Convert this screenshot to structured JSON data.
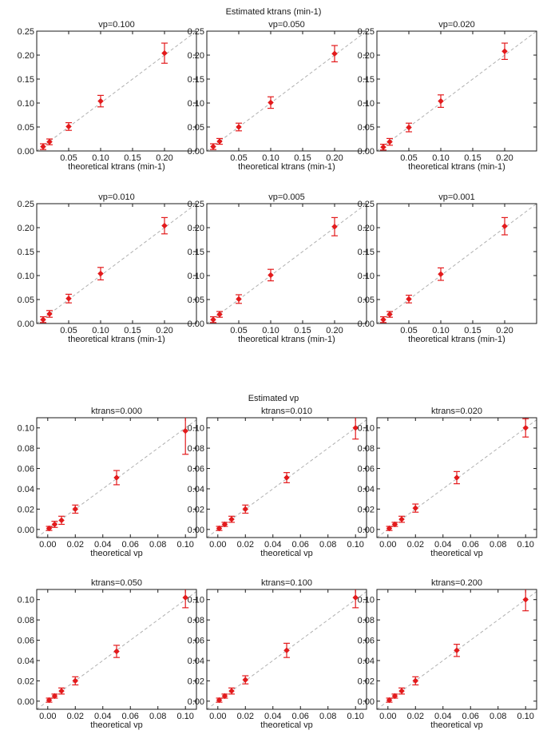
{
  "page": {
    "kt_group_title": "Estimated ktrans (min-1)",
    "vp_group_title": "Estimated vp"
  },
  "colors": {
    "marker": "#e31a1c",
    "identity_line": "#b0b0b0",
    "axis": "#1a1a1a"
  },
  "chart_data": [
    {
      "type": "scatter",
      "title": "vp=0.100",
      "xlabel": "theoretical ktrans (min-1)",
      "ylabel": "",
      "xlim": [
        0,
        0.25
      ],
      "ylim": [
        0,
        0.25
      ],
      "xticks": [
        0.05,
        0.1,
        0.15,
        0.2
      ],
      "xtick_labels": [
        "0.05",
        "0.10",
        "0.15",
        "0.20"
      ],
      "yticks": [
        0,
        0.05,
        0.1,
        0.15,
        0.2,
        0.25
      ],
      "ytick_labels": [
        "0.00",
        "0.05",
        "0.10",
        "0.15",
        "0.20",
        "0.25"
      ],
      "identity_line": true,
      "x": [
        0.01,
        0.02,
        0.05,
        0.1,
        0.2
      ],
      "y": [
        0.009,
        0.019,
        0.051,
        0.104,
        0.204
      ],
      "err": [
        0.006,
        0.006,
        0.008,
        0.012,
        0.021
      ]
    },
    {
      "type": "scatter",
      "title": "vp=0.050",
      "xlabel": "theoretical ktrans (min-1)",
      "ylabel": "",
      "xlim": [
        0,
        0.25
      ],
      "ylim": [
        0,
        0.25
      ],
      "xticks": [
        0.05,
        0.1,
        0.15,
        0.2
      ],
      "xtick_labels": [
        "0.05",
        "0.10",
        "0.15",
        "0.20"
      ],
      "yticks": [
        0,
        0.05,
        0.1,
        0.15,
        0.2,
        0.25
      ],
      "ytick_labels": [
        "0.00",
        "0.05",
        "0.10",
        "0.15",
        "0.20",
        "0.25"
      ],
      "identity_line": true,
      "x": [
        0.01,
        0.02,
        0.05,
        0.1,
        0.2
      ],
      "y": [
        0.009,
        0.02,
        0.05,
        0.101,
        0.203
      ],
      "err": [
        0.006,
        0.006,
        0.008,
        0.012,
        0.017
      ]
    },
    {
      "type": "scatter",
      "title": "vp=0.020",
      "xlabel": "theoretical ktrans (min-1)",
      "ylabel": "",
      "xlim": [
        0,
        0.25
      ],
      "ylim": [
        0,
        0.25
      ],
      "xticks": [
        0.05,
        0.1,
        0.15,
        0.2
      ],
      "xtick_labels": [
        "0.05",
        "0.10",
        "0.15",
        "0.20"
      ],
      "yticks": [
        0,
        0.05,
        0.1,
        0.15,
        0.2,
        0.25
      ],
      "ytick_labels": [
        "0.00",
        "0.05",
        "0.10",
        "0.15",
        "0.20",
        "0.25"
      ],
      "identity_line": true,
      "x": [
        0.01,
        0.02,
        0.05,
        0.1,
        0.2
      ],
      "y": [
        0.008,
        0.019,
        0.049,
        0.104,
        0.208
      ],
      "err": [
        0.006,
        0.007,
        0.009,
        0.013,
        0.017
      ]
    },
    {
      "type": "scatter",
      "title": "vp=0.010",
      "xlabel": "theoretical ktrans (min-1)",
      "ylabel": "",
      "xlim": [
        0,
        0.25
      ],
      "ylim": [
        0,
        0.25
      ],
      "xticks": [
        0.05,
        0.1,
        0.15,
        0.2
      ],
      "xtick_labels": [
        "0.05",
        "0.10",
        "0.15",
        "0.20"
      ],
      "yticks": [
        0,
        0.05,
        0.1,
        0.15,
        0.2,
        0.25
      ],
      "ytick_labels": [
        "0.00",
        "0.05",
        "0.10",
        "0.15",
        "0.20",
        "0.25"
      ],
      "identity_line": true,
      "x": [
        0.01,
        0.02,
        0.05,
        0.1,
        0.2
      ],
      "y": [
        0.008,
        0.02,
        0.052,
        0.104,
        0.204
      ],
      "err": [
        0.006,
        0.007,
        0.009,
        0.013,
        0.017
      ]
    },
    {
      "type": "scatter",
      "title": "vp=0.005",
      "xlabel": "theoretical ktrans (min-1)",
      "ylabel": "",
      "xlim": [
        0,
        0.25
      ],
      "ylim": [
        0,
        0.25
      ],
      "xticks": [
        0.05,
        0.1,
        0.15,
        0.2
      ],
      "xtick_labels": [
        "0.05",
        "0.10",
        "0.15",
        "0.20"
      ],
      "yticks": [
        0,
        0.05,
        0.1,
        0.15,
        0.2,
        0.25
      ],
      "ytick_labels": [
        "0.00",
        "0.05",
        "0.10",
        "0.15",
        "0.20",
        "0.25"
      ],
      "identity_line": true,
      "x": [
        0.01,
        0.02,
        0.05,
        0.1,
        0.2
      ],
      "y": [
        0.008,
        0.019,
        0.051,
        0.101,
        0.202
      ],
      "err": [
        0.006,
        0.006,
        0.009,
        0.012,
        0.019
      ]
    },
    {
      "type": "scatter",
      "title": "vp=0.001",
      "xlabel": "theoretical ktrans (min-1)",
      "ylabel": "",
      "xlim": [
        0,
        0.25
      ],
      "ylim": [
        0,
        0.25
      ],
      "xticks": [
        0.05,
        0.1,
        0.15,
        0.2
      ],
      "xtick_labels": [
        "0.05",
        "0.10",
        "0.15",
        "0.20"
      ],
      "yticks": [
        0,
        0.05,
        0.1,
        0.15,
        0.2,
        0.25
      ],
      "ytick_labels": [
        "0.00",
        "0.05",
        "0.10",
        "0.15",
        "0.20",
        "0.25"
      ],
      "identity_line": true,
      "x": [
        0.01,
        0.02,
        0.05,
        0.1,
        0.2
      ],
      "y": [
        0.008,
        0.019,
        0.051,
        0.103,
        0.203
      ],
      "err": [
        0.006,
        0.006,
        0.008,
        0.013,
        0.018
      ]
    },
    {
      "type": "scatter",
      "title": "ktrans=0.000",
      "xlabel": "theoretical vp",
      "ylabel": "",
      "xlim": [
        -0.008,
        0.108
      ],
      "ylim": [
        -0.008,
        0.11
      ],
      "xticks": [
        0,
        0.02,
        0.04,
        0.06,
        0.08,
        0.1
      ],
      "xtick_labels": [
        "0.00",
        "0.02",
        "0.04",
        "0.06",
        "0.08",
        "0.10"
      ],
      "yticks": [
        0,
        0.02,
        0.04,
        0.06,
        0.08,
        0.1
      ],
      "ytick_labels": [
        "0.00",
        "0.02",
        "0.04",
        "0.06",
        "0.08",
        "0.10"
      ],
      "identity_line": true,
      "x": [
        0.001,
        0.005,
        0.01,
        0.02,
        0.05,
        0.1
      ],
      "y": [
        0.001,
        0.005,
        0.009,
        0.02,
        0.051,
        0.097
      ],
      "err": [
        0.002,
        0.003,
        0.004,
        0.004,
        0.007,
        0.023
      ]
    },
    {
      "type": "scatter",
      "title": "ktrans=0.010",
      "xlabel": "theoretical vp",
      "ylabel": "",
      "xlim": [
        -0.008,
        0.108
      ],
      "ylim": [
        -0.008,
        0.11
      ],
      "xticks": [
        0,
        0.02,
        0.04,
        0.06,
        0.08,
        0.1
      ],
      "xtick_labels": [
        "0.00",
        "0.02",
        "0.04",
        "0.06",
        "0.08",
        "0.10"
      ],
      "yticks": [
        0,
        0.02,
        0.04,
        0.06,
        0.08,
        0.1
      ],
      "ytick_labels": [
        "0.00",
        "0.02",
        "0.04",
        "0.06",
        "0.08",
        "0.10"
      ],
      "identity_line": true,
      "x": [
        0.001,
        0.005,
        0.01,
        0.02,
        0.05,
        0.1
      ],
      "y": [
        0.001,
        0.005,
        0.01,
        0.02,
        0.051,
        0.1
      ],
      "err": [
        0.002,
        0.002,
        0.003,
        0.004,
        0.005,
        0.011
      ]
    },
    {
      "type": "scatter",
      "title": "ktrans=0.020",
      "xlabel": "theoretical vp",
      "ylabel": "",
      "xlim": [
        -0.008,
        0.108
      ],
      "ylim": [
        -0.008,
        0.11
      ],
      "xticks": [
        0,
        0.02,
        0.04,
        0.06,
        0.08,
        0.1
      ],
      "xtick_labels": [
        "0.00",
        "0.02",
        "0.04",
        "0.06",
        "0.08",
        "0.10"
      ],
      "yticks": [
        0,
        0.02,
        0.04,
        0.06,
        0.08,
        0.1
      ],
      "ytick_labels": [
        "0.00",
        "0.02",
        "0.04",
        "0.06",
        "0.08",
        "0.10"
      ],
      "identity_line": true,
      "x": [
        0.001,
        0.005,
        0.01,
        0.02,
        0.05,
        0.1
      ],
      "y": [
        0.001,
        0.005,
        0.01,
        0.021,
        0.051,
        0.1
      ],
      "err": [
        0.002,
        0.002,
        0.003,
        0.004,
        0.006,
        0.009
      ]
    },
    {
      "type": "scatter",
      "title": "ktrans=0.050",
      "xlabel": "theoretical vp",
      "ylabel": "",
      "xlim": [
        -0.008,
        0.108
      ],
      "ylim": [
        -0.008,
        0.11
      ],
      "xticks": [
        0,
        0.02,
        0.04,
        0.06,
        0.08,
        0.1
      ],
      "xtick_labels": [
        "0.00",
        "0.02",
        "0.04",
        "0.06",
        "0.08",
        "0.10"
      ],
      "yticks": [
        0,
        0.02,
        0.04,
        0.06,
        0.08,
        0.1
      ],
      "ytick_labels": [
        "0.00",
        "0.02",
        "0.04",
        "0.06",
        "0.08",
        "0.10"
      ],
      "identity_line": true,
      "x": [
        0.001,
        0.005,
        0.01,
        0.02,
        0.05,
        0.1
      ],
      "y": [
        0.001,
        0.005,
        0.01,
        0.02,
        0.049,
        0.102
      ],
      "err": [
        0.002,
        0.002,
        0.003,
        0.004,
        0.006,
        0.01
      ]
    },
    {
      "type": "scatter",
      "title": "ktrans=0.100",
      "xlabel": "theoretical vp",
      "ylabel": "",
      "xlim": [
        -0.008,
        0.108
      ],
      "ylim": [
        -0.008,
        0.11
      ],
      "xticks": [
        0,
        0.02,
        0.04,
        0.06,
        0.08,
        0.1
      ],
      "xtick_labels": [
        "0.00",
        "0.02",
        "0.04",
        "0.06",
        "0.08",
        "0.10"
      ],
      "yticks": [
        0,
        0.02,
        0.04,
        0.06,
        0.08,
        0.1
      ],
      "ytick_labels": [
        "0.00",
        "0.02",
        "0.04",
        "0.06",
        "0.08",
        "0.10"
      ],
      "identity_line": true,
      "x": [
        0.001,
        0.005,
        0.01,
        0.02,
        0.05,
        0.1
      ],
      "y": [
        0.001,
        0.005,
        0.01,
        0.021,
        0.05,
        0.102
      ],
      "err": [
        0.002,
        0.002,
        0.003,
        0.004,
        0.007,
        0.01
      ]
    },
    {
      "type": "scatter",
      "title": "ktrans=0.200",
      "xlabel": "theoretical vp",
      "ylabel": "",
      "xlim": [
        -0.008,
        0.108
      ],
      "ylim": [
        -0.008,
        0.11
      ],
      "xticks": [
        0,
        0.02,
        0.04,
        0.06,
        0.08,
        0.1
      ],
      "xtick_labels": [
        "0.00",
        "0.02",
        "0.04",
        "0.06",
        "0.08",
        "0.10"
      ],
      "yticks": [
        0,
        0.02,
        0.04,
        0.06,
        0.08,
        0.1
      ],
      "ytick_labels": [
        "0.00",
        "0.02",
        "0.04",
        "0.06",
        "0.08",
        "0.10"
      ],
      "identity_line": true,
      "x": [
        0.001,
        0.005,
        0.01,
        0.02,
        0.05,
        0.1
      ],
      "y": [
        0.001,
        0.005,
        0.01,
        0.02,
        0.05,
        0.1
      ],
      "err": [
        0.002,
        0.002,
        0.003,
        0.004,
        0.006,
        0.011
      ]
    }
  ]
}
